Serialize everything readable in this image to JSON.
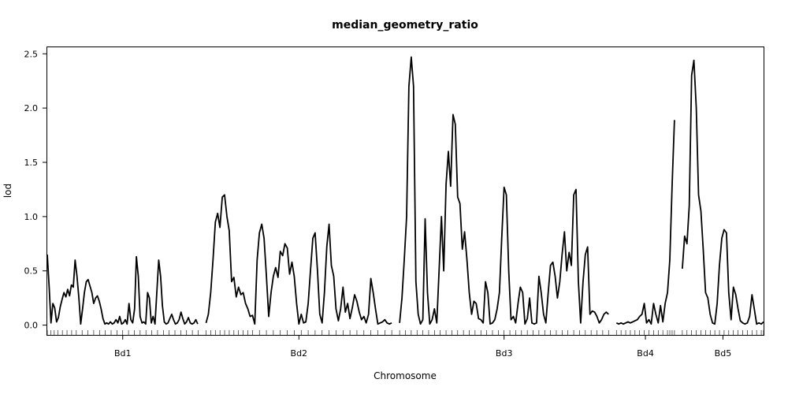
{
  "chart_data": {
    "type": "line",
    "title": "median_geometry_ratio",
    "xlabel": "Chromosome",
    "ylabel": "lod",
    "ylim": [
      -0.09,
      2.56
    ],
    "yticks": [
      "0.0",
      "0.5",
      "1.0",
      "1.5",
      "2.0",
      "2.5"
    ],
    "grid": false,
    "legend": "none",
    "line_color": "#000000",
    "chromosomes": [
      {
        "name": "Bd1",
        "length": 65,
        "markers": [
          0,
          1.5,
          3,
          4.5,
          6.5,
          8.5,
          10.5,
          12.5,
          15,
          17.5,
          20,
          22.5,
          25,
          27.5,
          30,
          32.5,
          35,
          37.5,
          40,
          42.5,
          45,
          47.5,
          50,
          52.5,
          55,
          57.5,
          60,
          62.5,
          65
        ],
        "pos": [
          0,
          0.8,
          1.6,
          2.4,
          3.2,
          4,
          4.8,
          5.6,
          6.4,
          7.2,
          8,
          8.8,
          9.6,
          10.4,
          11.2,
          12,
          12.8,
          13.6,
          14.4,
          15.2,
          16,
          16.8,
          17.6,
          18.4,
          19.2,
          20,
          20.8,
          21.6,
          22.4,
          23.2,
          24,
          24.8,
          25.6,
          26.4,
          27.2,
          28,
          28.8,
          29.6,
          30.4,
          31.2,
          32,
          32.8,
          33.6,
          34.4,
          35.2,
          36,
          36.8,
          37.6,
          38.4,
          39.2,
          40,
          40.8,
          41.6,
          42.4,
          43.2,
          44,
          44.8,
          45.6,
          46.4,
          47.2,
          48,
          48.8,
          49.6,
          50.4,
          51.2,
          52,
          52.8,
          53.6,
          54.4,
          55.2,
          56,
          56.8,
          57.6,
          58.4,
          59.2,
          60,
          60.8,
          61.6,
          62.4,
          63.2,
          64,
          64.8
        ],
        "lod": [
          0.65,
          0.35,
          0.02,
          0.2,
          0.16,
          0.03,
          0.07,
          0.17,
          0.24,
          0.3,
          0.26,
          0.33,
          0.27,
          0.37,
          0.35,
          0.6,
          0.45,
          0.25,
          0.01,
          0.15,
          0.3,
          0.4,
          0.42,
          0.36,
          0.3,
          0.2,
          0.25,
          0.27,
          0.22,
          0.15,
          0.06,
          0.01,
          0.02,
          0.01,
          0.03,
          0.01,
          0.02,
          0.05,
          0.02,
          0.08,
          0.01,
          0.02,
          0.05,
          0.01,
          0.2,
          0.05,
          0.02,
          0.15,
          0.63,
          0.45,
          0.08,
          0.02,
          0.03,
          0.01,
          0.3,
          0.25,
          0.02,
          0.08,
          0.01,
          0.3,
          0.6,
          0.45,
          0.18,
          0.03,
          0.01,
          0.02,
          0.06,
          0.1,
          0.05,
          0.01,
          0.02,
          0.05,
          0.12,
          0.06,
          0.01,
          0.03,
          0.07,
          0.02,
          0.01,
          0.02,
          0.05,
          0.01
        ]
      },
      {
        "name": "Bd2",
        "length": 80,
        "markers": [
          0,
          2,
          4,
          6,
          8,
          10,
          12,
          14,
          16,
          18,
          20,
          23,
          26,
          29,
          32,
          35,
          38,
          41,
          44,
          47,
          50,
          53,
          56,
          59,
          62,
          65,
          68,
          71,
          74,
          77,
          80
        ],
        "pos": [
          0,
          1,
          2,
          3,
          4,
          5,
          6,
          7,
          8,
          9,
          10,
          11,
          12,
          13,
          14,
          15,
          16,
          17,
          18,
          19,
          20,
          21,
          22,
          23,
          24,
          25,
          26,
          27,
          28,
          29,
          30,
          31,
          32,
          33,
          34,
          35,
          36,
          37,
          38,
          39,
          40,
          41,
          42,
          43,
          44,
          45,
          46,
          47,
          48,
          49,
          50,
          51,
          52,
          53,
          54,
          55,
          56,
          57,
          58,
          59,
          60,
          61,
          62,
          63,
          64,
          65,
          66,
          67,
          68,
          69,
          70,
          71,
          72,
          73,
          74,
          75,
          76,
          77,
          78,
          79,
          80
        ],
        "lod": [
          0.02,
          0.1,
          0.3,
          0.6,
          0.95,
          1.03,
          0.9,
          1.18,
          1.2,
          1.0,
          0.87,
          0.4,
          0.44,
          0.26,
          0.35,
          0.28,
          0.3,
          0.2,
          0.15,
          0.08,
          0.09,
          0.01,
          0.6,
          0.85,
          0.93,
          0.8,
          0.45,
          0.08,
          0.3,
          0.45,
          0.53,
          0.44,
          0.68,
          0.64,
          0.75,
          0.71,
          0.47,
          0.58,
          0.45,
          0.2,
          0.01,
          0.1,
          0.02,
          0.03,
          0.2,
          0.5,
          0.8,
          0.85,
          0.5,
          0.1,
          0.02,
          0.3,
          0.72,
          0.93,
          0.55,
          0.45,
          0.15,
          0.04,
          0.15,
          0.35,
          0.12,
          0.2,
          0.06,
          0.16,
          0.28,
          0.22,
          0.12,
          0.05,
          0.08,
          0.02,
          0.1,
          0.43,
          0.3,
          0.15,
          0.01,
          0.02,
          0.03,
          0.05,
          0.02,
          0.01,
          0.02
        ]
      },
      {
        "name": "Bd3",
        "length": 90,
        "markers": [
          0,
          2.5,
          5,
          7.5,
          10,
          12.5,
          15,
          17.5,
          20,
          22.5,
          25,
          27.5,
          30,
          32.5,
          35,
          37.5,
          40,
          42.5,
          45,
          47.5,
          50,
          52.5,
          55,
          57.5,
          60,
          62.5,
          65,
          67.5,
          70,
          72.5,
          75,
          77.5,
          80,
          82.5,
          85,
          87.5,
          90
        ],
        "pos": [
          0,
          1,
          2,
          3,
          4,
          5,
          6,
          7,
          8,
          9,
          10,
          11,
          12,
          13,
          14,
          15,
          16,
          17,
          18,
          19,
          20,
          21,
          22,
          23,
          24,
          25,
          26,
          27,
          28,
          29,
          30,
          31,
          32,
          33,
          34,
          35,
          36,
          37,
          38,
          39,
          40,
          41,
          42,
          43,
          44,
          45,
          46,
          47,
          48,
          49,
          50,
          51,
          52,
          53,
          54,
          55,
          56,
          57,
          58,
          59,
          60,
          61,
          62,
          63,
          64,
          65,
          66,
          67,
          68,
          69,
          70,
          71,
          72,
          73,
          74,
          75,
          76,
          77,
          78,
          79,
          80,
          81,
          82,
          83,
          84,
          85,
          86,
          87,
          88,
          89,
          90
        ],
        "lod": [
          0.02,
          0.25,
          0.6,
          1.0,
          2.2,
          2.47,
          2.2,
          0.4,
          0.1,
          0.01,
          0.05,
          0.98,
          0.3,
          0.01,
          0.05,
          0.15,
          0.02,
          0.5,
          1.0,
          0.5,
          1.3,
          1.6,
          1.28,
          1.94,
          1.85,
          1.18,
          1.12,
          0.7,
          0.86,
          0.6,
          0.3,
          0.1,
          0.22,
          0.2,
          0.06,
          0.05,
          0.02,
          0.4,
          0.3,
          0.01,
          0.02,
          0.05,
          0.15,
          0.3,
          0.8,
          1.27,
          1.2,
          0.5,
          0.05,
          0.08,
          0.02,
          0.2,
          0.35,
          0.3,
          0.01,
          0.06,
          0.25,
          0.02,
          0.01,
          0.02,
          0.45,
          0.3,
          0.1,
          0.02,
          0.3,
          0.55,
          0.58,
          0.45,
          0.25,
          0.4,
          0.65,
          0.86,
          0.5,
          0.67,
          0.55,
          1.2,
          1.25,
          0.4,
          0.02,
          0.4,
          0.65,
          0.72,
          0.1,
          0.13,
          0.12,
          0.08,
          0.02,
          0.05,
          0.1,
          0.12,
          0.1
        ]
      },
      {
        "name": "Bd4",
        "length": 25,
        "markers": [
          0,
          2,
          4,
          6,
          8,
          10,
          12,
          14,
          16,
          18,
          20,
          22,
          23,
          24,
          25
        ],
        "pos": [
          0,
          1,
          2,
          3,
          4,
          5,
          6,
          7,
          8,
          9,
          10,
          11,
          12,
          13,
          14,
          15,
          16,
          17,
          18,
          19,
          20,
          21,
          22,
          23,
          24,
          25
        ],
        "lod": [
          0.02,
          0.01,
          0.02,
          0.01,
          0.02,
          0.03,
          0.02,
          0.03,
          0.04,
          0.05,
          0.08,
          0.1,
          0.2,
          0.02,
          0.05,
          0.01,
          0.2,
          0.1,
          0.02,
          0.18,
          0.03,
          0.2,
          0.3,
          0.6,
          1.3,
          1.89
        ]
      },
      {
        "name": "Bd5",
        "length": 35,
        "markers": [
          0,
          2,
          4,
          6,
          8,
          10,
          12,
          14,
          16,
          18,
          20,
          22,
          24,
          26,
          28,
          30,
          32,
          34,
          35
        ],
        "pos": [
          0,
          1,
          2,
          3,
          4,
          5,
          6,
          7,
          8,
          9,
          10,
          11,
          12,
          13,
          14,
          15,
          16,
          17,
          18,
          19,
          20,
          21,
          22,
          23,
          24,
          25,
          26,
          27,
          28,
          29,
          30,
          31,
          32,
          33,
          34,
          35
        ],
        "lod": [
          0.52,
          0.82,
          0.75,
          1.1,
          2.3,
          2.44,
          2.0,
          1.2,
          1.05,
          0.7,
          0.3,
          0.25,
          0.1,
          0.02,
          0.01,
          0.2,
          0.55,
          0.8,
          0.88,
          0.85,
          0.3,
          0.05,
          0.35,
          0.28,
          0.15,
          0.04,
          0.02,
          0.01,
          0.02,
          0.08,
          0.28,
          0.15,
          0.01,
          0.02,
          0.01,
          0.03
        ]
      }
    ]
  }
}
